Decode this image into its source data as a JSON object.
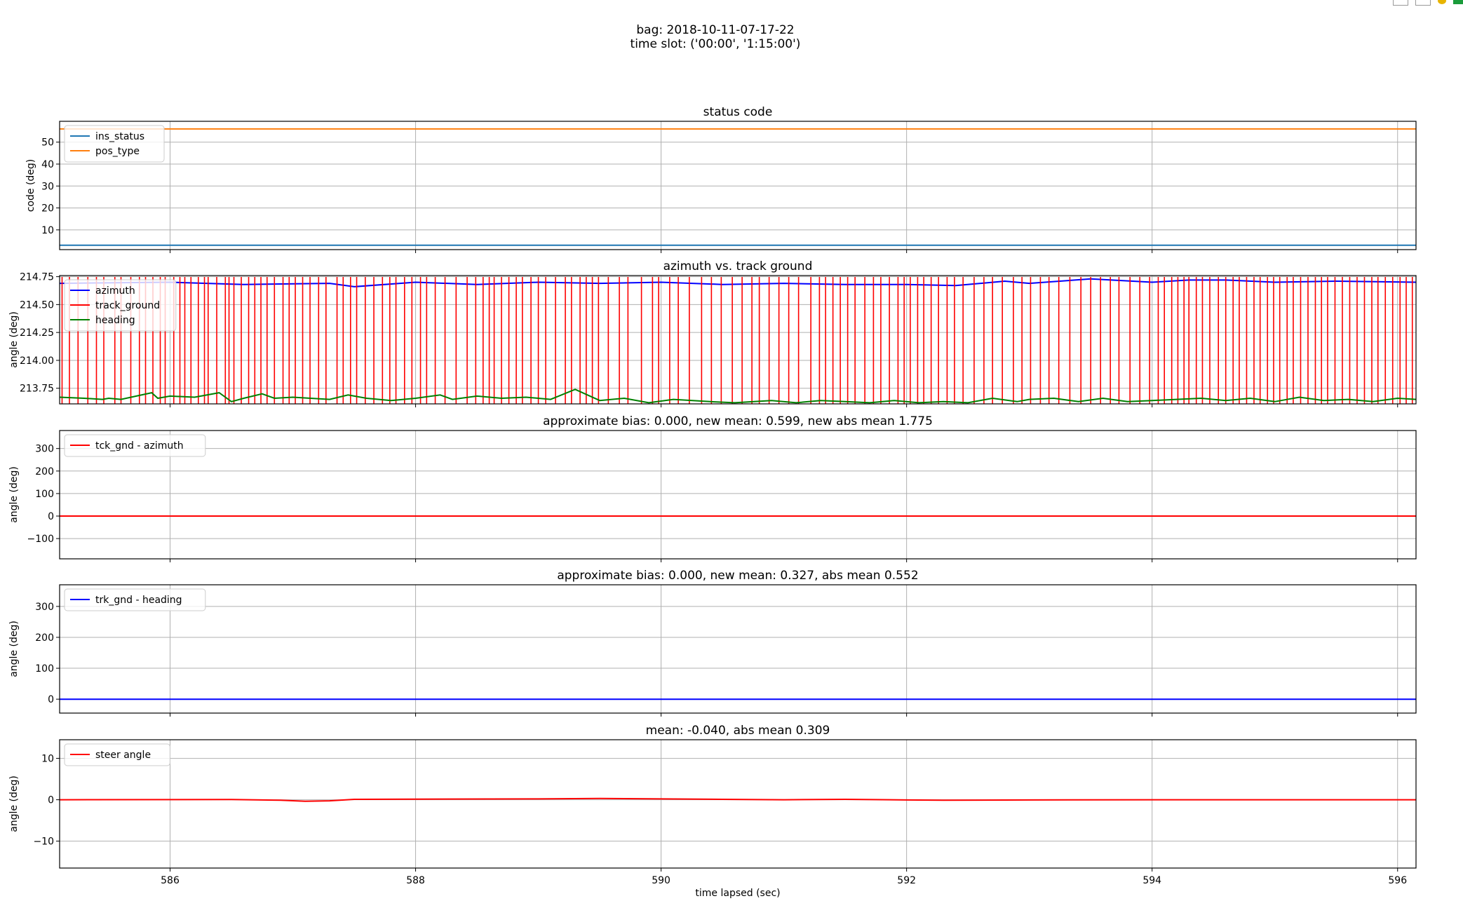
{
  "suptitle": [
    "bag: 2018-10-11-07-17-22",
    "time slot: ('00:00', '1:15:00')"
  ],
  "xlabel": "time lapsed (sec)",
  "toolbar_icons": [
    "grid-icon",
    "grid-icon",
    "palette-icon",
    "arrow-icon"
  ],
  "chart_data": [
    {
      "type": "line",
      "title": "status code",
      "ylabel": "code (deg)",
      "xlim": [
        585.1,
        596.15
      ],
      "ylim": [
        1,
        59.5
      ],
      "yticks": [
        10,
        20,
        30,
        40,
        50
      ],
      "yticklabels": [
        "10",
        "20",
        "30",
        "40",
        "50"
      ],
      "xticks": [
        586,
        588,
        590,
        592,
        594,
        596
      ],
      "xticklabels": [],
      "grid": true,
      "legend": "upper-left",
      "series": [
        {
          "name": "ins_status",
          "color": "#1f77b4",
          "x": [
            585.1,
            596.15
          ],
          "y": [
            3,
            3
          ]
        },
        {
          "name": "pos_type",
          "color": "#ff7f0e",
          "x": [
            585.1,
            596.15
          ],
          "y": [
            56,
            56
          ]
        }
      ]
    },
    {
      "type": "line",
      "title": "azimuth vs. track ground",
      "ylabel": "angle (deg)",
      "xlim": [
        585.1,
        596.15
      ],
      "ylim": [
        213.61,
        214.76
      ],
      "yticks": [
        213.75,
        214.0,
        214.25,
        214.5,
        214.75
      ],
      "yticklabels": [
        "213.75",
        "214.00",
        "214.25",
        "214.50",
        "214.75"
      ],
      "xticks": [
        586,
        588,
        590,
        592,
        594,
        596
      ],
      "xticklabels": [],
      "grid": true,
      "legend": "upper-left",
      "series": [
        {
          "name": "azimuth",
          "color": "#0000ff",
          "x": [
            585.1,
            586.0,
            586.6,
            587.3,
            587.5,
            588.0,
            588.5,
            589.0,
            589.5,
            590.0,
            590.5,
            591.0,
            591.5,
            592.0,
            592.4,
            592.8,
            593.0,
            593.5,
            594.0,
            594.3,
            594.6,
            595.0,
            595.5,
            596.15
          ],
          "y": [
            214.69,
            214.7,
            214.68,
            214.69,
            214.66,
            214.7,
            214.68,
            214.7,
            214.69,
            214.7,
            214.68,
            214.69,
            214.68,
            214.68,
            214.67,
            214.71,
            214.69,
            214.73,
            214.7,
            214.72,
            214.72,
            214.7,
            214.71,
            214.7
          ]
        },
        {
          "name": "track_ground",
          "color": "#ff0000",
          "style": "spikes",
          "x": [
            585.12,
            585.18,
            585.25,
            585.33,
            585.4,
            585.46,
            585.55,
            585.6,
            585.68,
            585.75,
            585.8,
            585.86,
            585.92,
            585.96,
            586.03,
            586.08,
            586.12,
            586.17,
            586.23,
            586.28,
            586.31,
            586.38,
            586.45,
            586.48,
            586.52,
            586.58,
            586.64,
            586.69,
            586.74,
            586.79,
            586.85,
            586.92,
            586.97,
            587.02,
            587.08,
            587.14,
            587.21,
            587.27,
            587.36,
            587.41,
            587.47,
            587.52,
            587.59,
            587.66,
            587.73,
            587.79,
            587.84,
            587.91,
            587.97,
            588.04,
            588.09,
            588.16,
            588.24,
            588.33,
            588.42,
            588.49,
            588.55,
            588.6,
            588.64,
            588.7,
            588.76,
            588.82,
            588.87,
            588.94,
            589.0,
            589.06,
            589.14,
            589.22,
            589.27,
            589.34,
            589.39,
            589.44,
            589.49,
            589.57,
            589.66,
            589.73,
            589.84,
            589.93,
            589.98,
            590.07,
            590.14,
            590.23,
            590.33,
            590.41,
            590.49,
            590.58,
            590.66,
            590.74,
            590.8,
            590.88,
            590.96,
            591.04,
            591.12,
            591.22,
            591.29,
            591.34,
            591.4,
            591.46,
            591.52,
            591.58,
            591.66,
            591.73,
            591.79,
            591.86,
            591.93,
            591.98,
            592.03,
            592.09,
            592.14,
            592.2,
            592.26,
            592.33,
            592.39,
            592.46,
            592.55,
            592.63,
            592.7,
            592.78,
            592.87,
            592.94,
            593.01,
            593.09,
            593.16,
            593.24,
            593.33,
            593.42,
            593.5,
            593.58,
            593.66,
            593.73,
            593.82,
            593.9,
            593.98,
            594.05,
            594.1,
            594.16,
            594.21,
            594.26,
            594.3,
            594.36,
            594.41,
            594.47,
            594.54,
            594.6,
            594.66,
            594.71,
            594.77,
            594.83,
            594.88,
            594.94,
            594.99,
            595.04,
            595.1,
            595.15,
            595.21,
            595.27,
            595.33,
            595.38,
            595.43,
            595.49,
            595.55,
            595.61,
            595.67,
            595.73,
            595.79,
            595.84,
            595.9,
            595.96,
            596.02,
            596.07,
            596.12
          ]
        },
        {
          "name": "heading",
          "color": "#008000",
          "x": [
            585.1,
            585.3,
            585.45,
            585.5,
            585.6,
            585.85,
            585.9,
            586.0,
            586.2,
            586.4,
            586.5,
            586.6,
            586.75,
            586.85,
            587.0,
            587.3,
            587.45,
            587.6,
            587.8,
            588.0,
            588.2,
            588.3,
            588.5,
            588.7,
            588.9,
            589.1,
            589.3,
            589.5,
            589.7,
            589.9,
            590.1,
            590.4,
            590.6,
            590.9,
            591.1,
            591.3,
            591.5,
            591.7,
            591.9,
            592.1,
            592.3,
            592.5,
            592.7,
            592.9,
            593.0,
            593.2,
            593.4,
            593.6,
            593.8,
            594.0,
            594.2,
            594.4,
            594.6,
            594.8,
            595.0,
            595.2,
            595.4,
            595.6,
            595.8,
            596.0,
            596.15
          ],
          "y": [
            213.67,
            213.66,
            213.65,
            213.66,
            213.65,
            213.71,
            213.66,
            213.68,
            213.67,
            213.71,
            213.63,
            213.66,
            213.7,
            213.66,
            213.67,
            213.65,
            213.69,
            213.66,
            213.64,
            213.66,
            213.69,
            213.65,
            213.68,
            213.66,
            213.67,
            213.65,
            213.74,
            213.64,
            213.66,
            213.62,
            213.65,
            213.63,
            213.62,
            213.64,
            213.62,
            213.64,
            213.63,
            213.62,
            213.64,
            213.62,
            213.63,
            213.62,
            213.66,
            213.63,
            213.65,
            213.66,
            213.63,
            213.66,
            213.63,
            213.64,
            213.65,
            213.66,
            213.64,
            213.66,
            213.63,
            213.67,
            213.64,
            213.65,
            213.63,
            213.66,
            213.65
          ]
        }
      ]
    },
    {
      "type": "line",
      "title": "approximate bias: 0.000, new mean: 0.599, new abs mean 1.775",
      "ylabel": "angle (deg)",
      "xlim": [
        585.1,
        596.15
      ],
      "ylim": [
        -190,
        380
      ],
      "yticks": [
        -100,
        0,
        100,
        200,
        300
      ],
      "yticklabels": [
        "−100",
        "0",
        "100",
        "200",
        "300"
      ],
      "xticks": [
        586,
        588,
        590,
        592,
        594,
        596
      ],
      "xticklabels": [],
      "grid": true,
      "legend": "upper-left",
      "series": [
        {
          "name": "tck_gnd - azimuth",
          "color": "#ff0000",
          "x": [
            585.1,
            596.15
          ],
          "y": [
            0,
            0
          ]
        }
      ]
    },
    {
      "type": "line",
      "title": "approximate bias: 0.000, new mean: 0.327, abs mean 0.552",
      "ylabel": "angle (deg)",
      "xlim": [
        585.1,
        596.15
      ],
      "ylim": [
        -45,
        370
      ],
      "yticks": [
        0,
        100,
        200,
        300
      ],
      "yticklabels": [
        "0",
        "100",
        "200",
        "300"
      ],
      "xticks": [
        586,
        588,
        590,
        592,
        594,
        596
      ],
      "xticklabels": [],
      "grid": true,
      "legend": "upper-left",
      "series": [
        {
          "name": "trk_gnd - heading",
          "color": "#0000ff",
          "x": [
            585.1,
            596.15
          ],
          "y": [
            0,
            0
          ]
        }
      ]
    },
    {
      "type": "line",
      "title": "mean: -0.040, abs mean 0.309",
      "ylabel": "angle (deg)",
      "xlim": [
        585.1,
        596.15
      ],
      "ylim": [
        -16.5,
        14.5
      ],
      "yticks": [
        -10,
        0,
        10
      ],
      "yticklabels": [
        "−10",
        "0",
        "10"
      ],
      "xticks": [
        586,
        588,
        590,
        592,
        594,
        596
      ],
      "xticklabels": [
        "586",
        "588",
        "590",
        "592",
        "594",
        "596"
      ],
      "grid": true,
      "legend": "upper-left",
      "series": [
        {
          "name": "steer angle",
          "color": "#ff0000",
          "x": [
            585.1,
            586.5,
            586.9,
            587.1,
            587.3,
            587.5,
            588.0,
            589.0,
            589.5,
            590.0,
            590.5,
            591.0,
            591.5,
            592.0,
            592.3,
            593.0,
            594.0,
            595.0,
            596.15
          ],
          "y": [
            0,
            0.05,
            -0.1,
            -0.35,
            -0.25,
            0.1,
            0.15,
            0.2,
            0.3,
            0.2,
            0.1,
            0.0,
            0.1,
            -0.05,
            -0.1,
            -0.05,
            0.0,
            0.0,
            0.0
          ]
        }
      ]
    }
  ]
}
